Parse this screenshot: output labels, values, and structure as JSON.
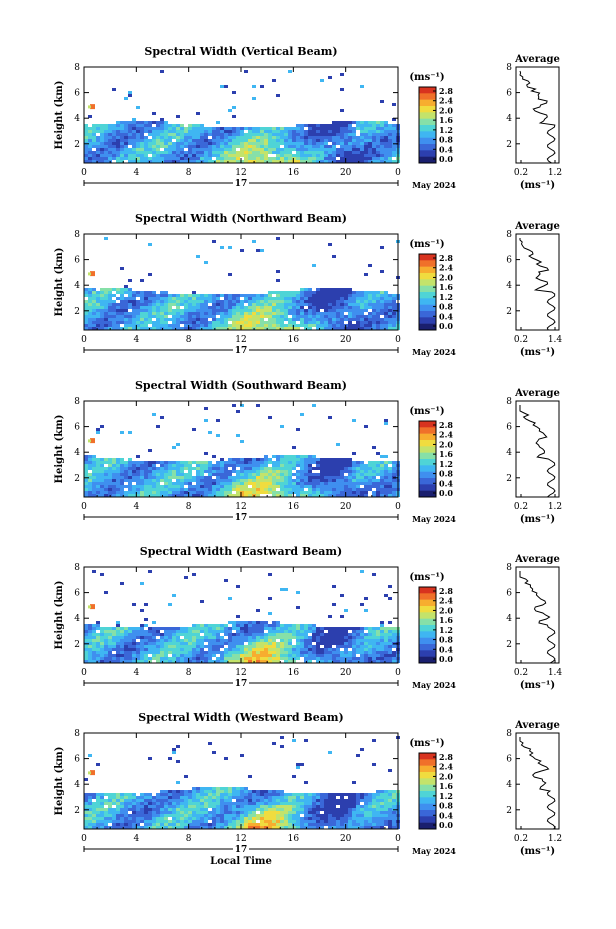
{
  "colors": {
    "scale": [
      "#1a1f6e",
      "#2c3fae",
      "#3a67d8",
      "#3f8fef",
      "#3fb6f2",
      "#4fd4d6",
      "#86e0a8",
      "#c3e36b",
      "#f0dc3f",
      "#f7ad2f",
      "#f0702a",
      "#d8331f"
    ]
  },
  "chart_data": [
    {
      "type": "heatmap",
      "title": "Spectral Width (Vertical Beam)",
      "ylabel": "Height (km)",
      "ylim": [
        0.5,
        8
      ],
      "yticks": [
        "2",
        "4",
        "6",
        "8"
      ],
      "xlim": [
        0,
        24
      ],
      "xticks": [
        "0",
        "4",
        "8",
        "12",
        "16",
        "20",
        "0"
      ],
      "date_day": "17",
      "date_label": "May 2024",
      "colorbar": {
        "unit": "(ms⁻¹)",
        "ticks": [
          "0.0",
          "0.4",
          "0.8",
          "1.2",
          "1.6",
          "2.0",
          "2.4",
          "2.8"
        ]
      },
      "profile": {
        "title": "Average",
        "xlabel": "(ms⁻¹)",
        "xticks": [
          "0.2",
          "1.2"
        ],
        "yticks": [
          "2",
          "4",
          "6",
          "8"
        ]
      }
    },
    {
      "type": "heatmap",
      "title": "Spectral Width (Northward Beam)",
      "ylabel": "Height (km)",
      "ylim": [
        0.5,
        8
      ],
      "yticks": [
        "2",
        "4",
        "6",
        "8"
      ],
      "xlim": [
        0,
        24
      ],
      "xticks": [
        "0",
        "4",
        "8",
        "12",
        "16",
        "20",
        "0"
      ],
      "date_day": "17",
      "date_label": "May 2024",
      "colorbar": {
        "unit": "(ms⁻¹)",
        "ticks": [
          "0.0",
          "0.4",
          "0.8",
          "1.2",
          "1.6",
          "2.0",
          "2.4",
          "2.8"
        ]
      },
      "profile": {
        "title": "Average",
        "xlabel": "(ms⁻¹)",
        "xticks": [
          "0.2",
          "1.4"
        ],
        "yticks": [
          "2",
          "4",
          "6",
          "8"
        ]
      }
    },
    {
      "type": "heatmap",
      "title": "Spectral Width (Southward Beam)",
      "ylabel": "Height (km)",
      "ylim": [
        0.5,
        8
      ],
      "yticks": [
        "2",
        "4",
        "6",
        "8"
      ],
      "xlim": [
        0,
        24
      ],
      "xticks": [
        "0",
        "4",
        "8",
        "12",
        "16",
        "20",
        "0"
      ],
      "date_day": "17",
      "date_label": "May 2024",
      "colorbar": {
        "unit": "(ms⁻¹)",
        "ticks": [
          "0.0",
          "0.4",
          "0.8",
          "1.2",
          "1.6",
          "2.0",
          "2.4",
          "2.8"
        ]
      },
      "profile": {
        "title": "Average",
        "xlabel": "(ms⁻¹)",
        "xticks": [
          "0.2",
          "1.2"
        ],
        "yticks": [
          "2",
          "4",
          "6",
          "8"
        ]
      }
    },
    {
      "type": "heatmap",
      "title": "Spectral Width (Eastward Beam)",
      "ylabel": "Height (km)",
      "ylim": [
        0.5,
        8
      ],
      "yticks": [
        "2",
        "4",
        "6",
        "8"
      ],
      "xlim": [
        0,
        24
      ],
      "xticks": [
        "0",
        "4",
        "8",
        "12",
        "16",
        "20",
        "0"
      ],
      "date_day": "17",
      "date_label": "May 2024",
      "colorbar": {
        "unit": "(ms⁻¹)",
        "ticks": [
          "0.0",
          "0.4",
          "0.8",
          "1.2",
          "1.6",
          "2.0",
          "2.4",
          "2.8"
        ]
      },
      "profile": {
        "title": "Average",
        "xlabel": "(ms⁻¹)",
        "xticks": [
          "0.2",
          "1.4"
        ],
        "yticks": [
          "2",
          "4",
          "6",
          "8"
        ]
      }
    },
    {
      "type": "heatmap",
      "title": "Spectral Width (Westward Beam)",
      "ylabel": "Height (km)",
      "ylim": [
        0.5,
        8
      ],
      "yticks": [
        "2",
        "4",
        "6",
        "8"
      ],
      "xlim": [
        0,
        24
      ],
      "xticks": [
        "0",
        "4",
        "8",
        "12",
        "16",
        "20",
        "0"
      ],
      "date_day": "17",
      "date_label": "May 2024",
      "xlabel": "Local Time",
      "colorbar": {
        "unit": "(ms⁻¹)",
        "ticks": [
          "0.0",
          "0.4",
          "0.8",
          "1.2",
          "1.6",
          "2.0",
          "2.4",
          "2.8"
        ]
      },
      "profile": {
        "title": "Average",
        "xlabel": "(ms⁻¹)",
        "xticks": [
          "0.2",
          "1.2"
        ],
        "yticks": [
          "2",
          "4",
          "6",
          "8"
        ]
      }
    }
  ]
}
